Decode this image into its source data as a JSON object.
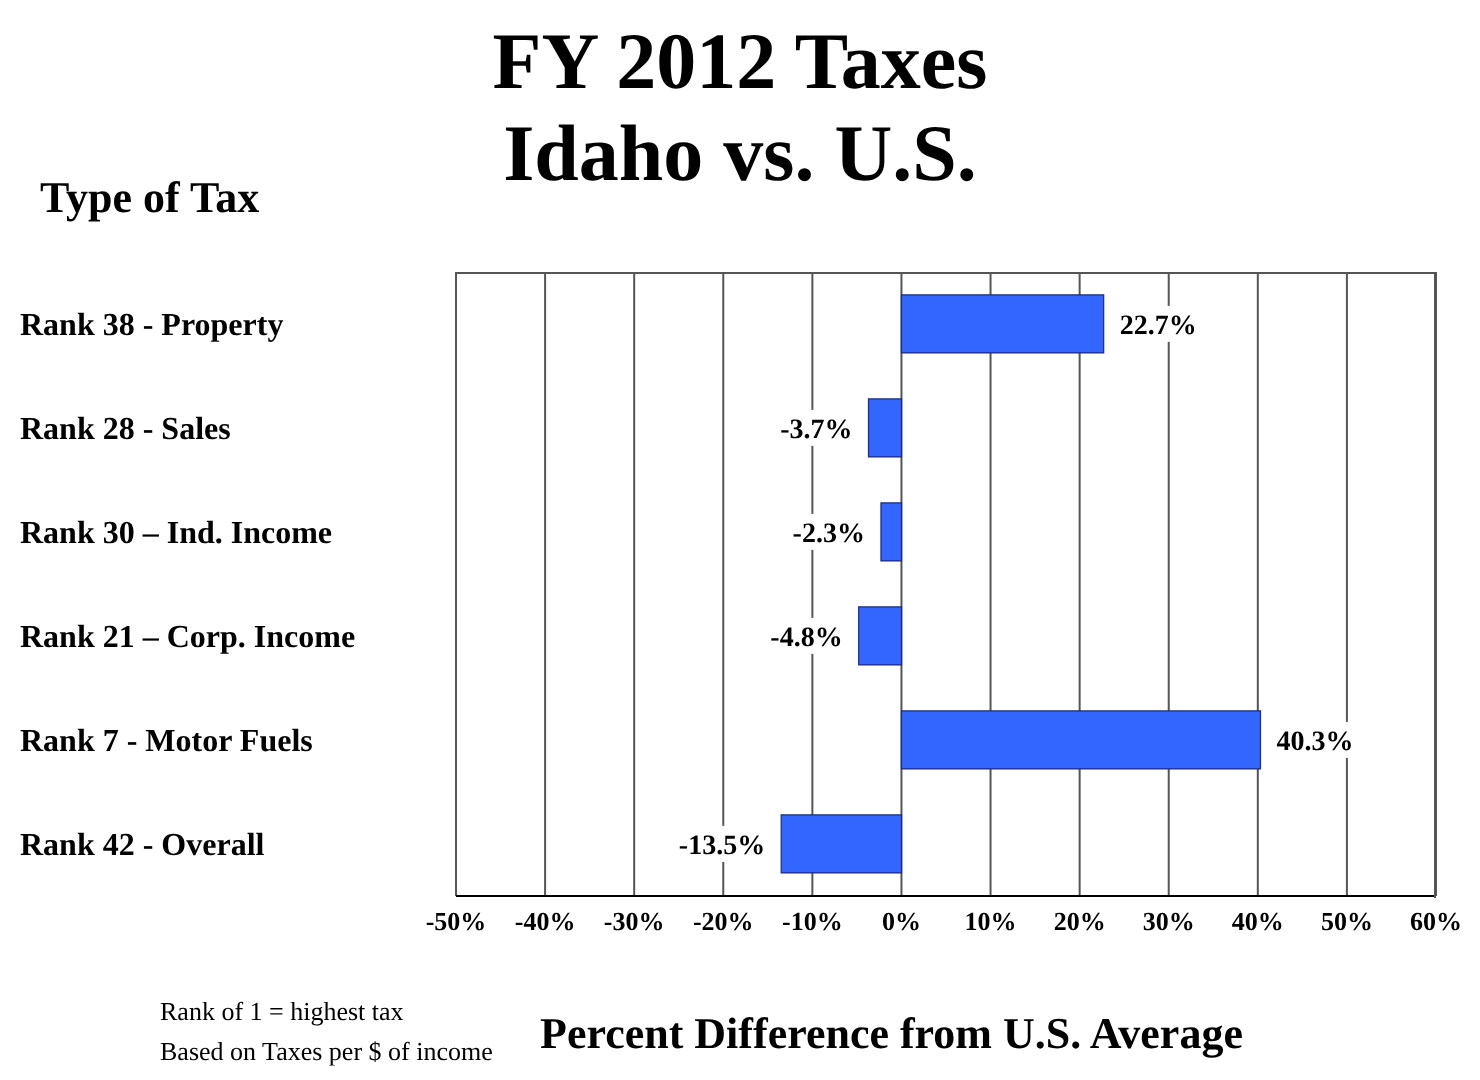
{
  "chart_data": {
    "type": "bar",
    "orientation": "horizontal",
    "title": "FY 2012 Taxes",
    "subtitle": "Idaho vs. U.S.",
    "ylabel": "Type of Tax",
    "xlabel": "Percent Difference from U.S. Average",
    "categories": [
      "Rank 38 - Property",
      "Rank 28 - Sales",
      "Rank 30 – Ind. Income",
      "Rank 21 – Corp. Income",
      "Rank 7 - Motor Fuels",
      "Rank 42 - Overall"
    ],
    "values": [
      22.7,
      -3.7,
      -2.3,
      -4.8,
      40.3,
      -13.5
    ],
    "value_labels": [
      "22.7%",
      "-3.7%",
      "-2.3%",
      "-4.8%",
      "40.3%",
      "-13.5%"
    ],
    "color": "#3366ff",
    "xlim": [
      -50,
      60
    ],
    "xticks": [
      {
        "value": -50,
        "label": "-50%"
      },
      {
        "value": -40,
        "label": "-40%"
      },
      {
        "value": -30,
        "label": "-30%"
      },
      {
        "value": -20,
        "label": "-20%"
      },
      {
        "value": -10,
        "label": "-10%"
      },
      {
        "value": 0,
        "label": "0%"
      },
      {
        "value": 10,
        "label": "10%"
      },
      {
        "value": 20,
        "label": "20%"
      },
      {
        "value": 30,
        "label": "30%"
      },
      {
        "value": 40,
        "label": "40%"
      },
      {
        "value": 50,
        "label": "50%"
      },
      {
        "value": 60,
        "label": "60%"
      }
    ],
    "grid": "x",
    "legend": false,
    "annotations": [
      "Rank of 1 = highest tax",
      "Based on Taxes per $ of income"
    ]
  }
}
